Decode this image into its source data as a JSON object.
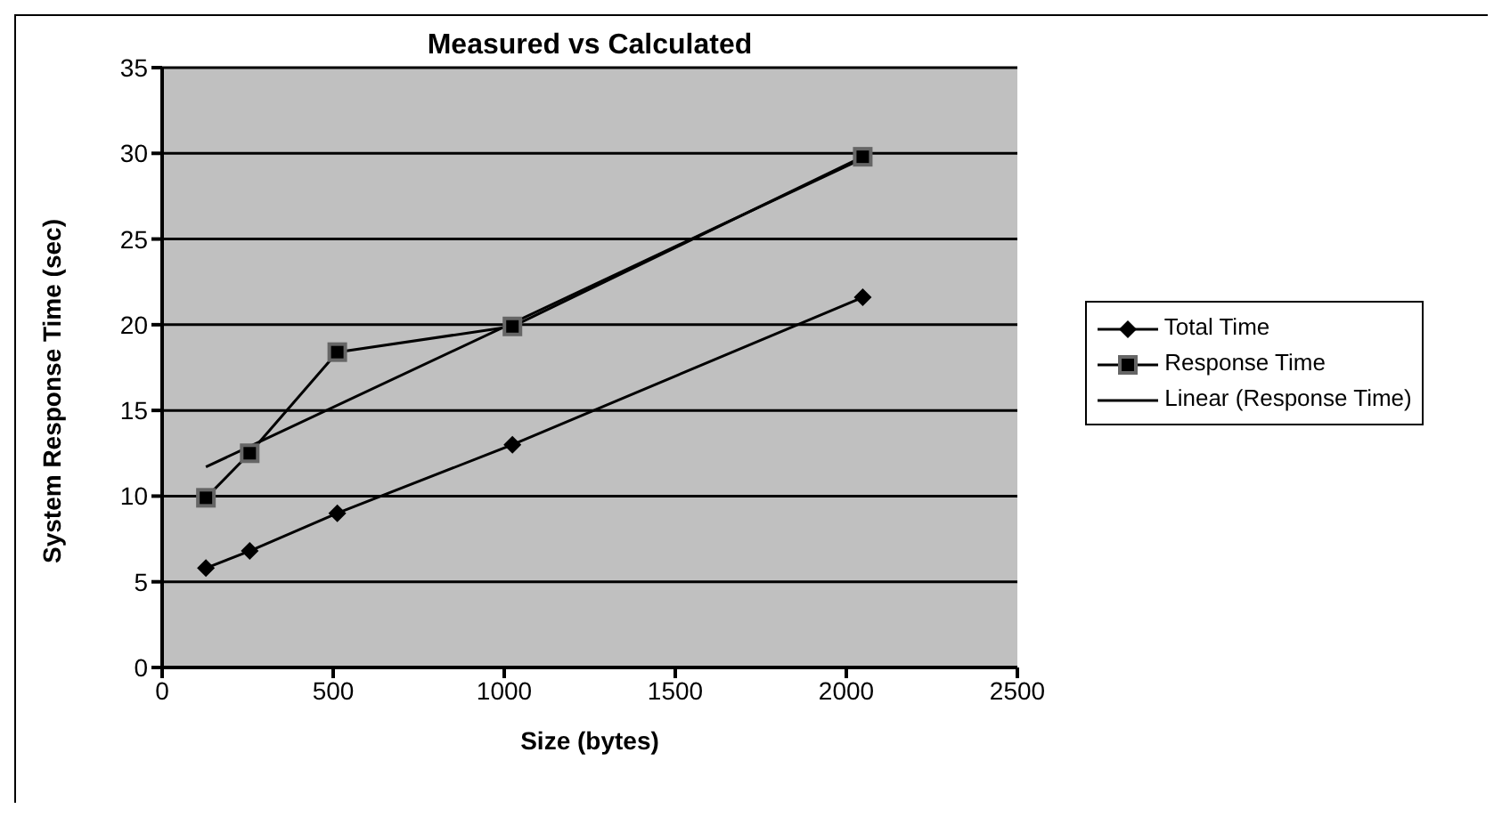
{
  "chart_data": {
    "type": "line",
    "title": "Measured vs Calculated",
    "xlabel": "Size (bytes)",
    "ylabel": "System Response Time (sec)",
    "x": [
      128,
      256,
      512,
      1024,
      2048
    ],
    "series": [
      {
        "name": "Total Time",
        "color": "#000000",
        "marker": "diamond",
        "values": [
          5.8,
          6.8,
          9.0,
          13.0,
          21.6
        ]
      },
      {
        "name": "Response Time",
        "color": "#000000",
        "marker": "square",
        "values": [
          9.9,
          12.5,
          18.4,
          19.9,
          29.8
        ]
      },
      {
        "name": "Linear (Response Time)",
        "color": "#000000",
        "marker": "none",
        "x": [
          128,
          2048
        ],
        "values": [
          11.7,
          29.7
        ]
      }
    ],
    "xlim": [
      0,
      2500
    ],
    "xticks": [
      0,
      500,
      1000,
      1500,
      2000,
      2500
    ],
    "ylim": [
      0,
      35
    ],
    "yticks": [
      0,
      5,
      10,
      15,
      20,
      25,
      30,
      35
    ],
    "grid": "y",
    "legend": "right"
  }
}
